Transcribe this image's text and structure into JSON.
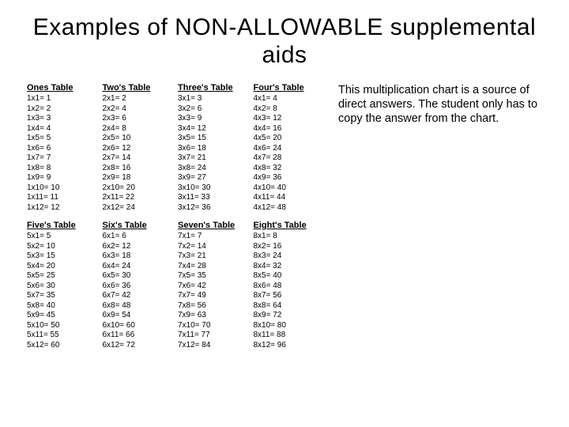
{
  "title": "Examples of NON-ALLOWABLE supplemental aids",
  "caption": "This multiplication chart is a source of direct answers.  The student only has to copy the answer from the chart.",
  "tables": {
    "t1": {
      "header": "Ones Table",
      "prefix": "1",
      "rows": [
        {
          "m": "x1=",
          "p": "1"
        },
        {
          "m": "x2=",
          "p": "2"
        },
        {
          "m": "x3=",
          "p": "3"
        },
        {
          "m": "x4=",
          "p": "4"
        },
        {
          "m": "x5=",
          "p": "5"
        },
        {
          "m": "x6=",
          "p": "6"
        },
        {
          "m": "x7=",
          "p": "7"
        },
        {
          "m": "x8=",
          "p": "8"
        },
        {
          "m": "x9=",
          "p": "9"
        },
        {
          "m": "x10=",
          "p": "10"
        },
        {
          "m": "x11=",
          "p": "11"
        },
        {
          "m": "x12=",
          "p": "12"
        }
      ]
    },
    "t2": {
      "header": "Two's Table",
      "prefix": "2",
      "rows": [
        {
          "m": "x1=",
          "p": "2"
        },
        {
          "m": "x2=",
          "p": "4"
        },
        {
          "m": "x3=",
          "p": "6"
        },
        {
          "m": "x4=",
          "p": "8"
        },
        {
          "m": "x5=",
          "p": "10"
        },
        {
          "m": "x6=",
          "p": "12"
        },
        {
          "m": "x7=",
          "p": "14"
        },
        {
          "m": "x8=",
          "p": "16"
        },
        {
          "m": "x9=",
          "p": "18"
        },
        {
          "m": "x10=",
          "p": "20"
        },
        {
          "m": "x11=",
          "p": "22"
        },
        {
          "m": "x12=",
          "p": "24"
        }
      ]
    },
    "t3": {
      "header": "Three's Table",
      "prefix": "3",
      "rows": [
        {
          "m": "x1=",
          "p": "3"
        },
        {
          "m": "x2=",
          "p": "6"
        },
        {
          "m": "x3=",
          "p": "9"
        },
        {
          "m": "x4=",
          "p": "12"
        },
        {
          "m": "x5=",
          "p": "15"
        },
        {
          "m": "x6=",
          "p": "18"
        },
        {
          "m": "x7=",
          "p": "21"
        },
        {
          "m": "x8=",
          "p": "24"
        },
        {
          "m": "x9=",
          "p": "27"
        },
        {
          "m": "x10=",
          "p": "30"
        },
        {
          "m": "x11=",
          "p": "33"
        },
        {
          "m": "x12=",
          "p": "36"
        }
      ]
    },
    "t4": {
      "header": "Four's Table",
      "prefix": "4",
      "rows": [
        {
          "m": "x1=",
          "p": "4"
        },
        {
          "m": "x2=",
          "p": "8"
        },
        {
          "m": "x3=",
          "p": "12"
        },
        {
          "m": "x4=",
          "p": "16"
        },
        {
          "m": "x5=",
          "p": "20"
        },
        {
          "m": "x6=",
          "p": "24"
        },
        {
          "m": "x7=",
          "p": "28"
        },
        {
          "m": "x8=",
          "p": "32"
        },
        {
          "m": "x9=",
          "p": "36"
        },
        {
          "m": "x10=",
          "p": "40"
        },
        {
          "m": "x11=",
          "p": "44"
        },
        {
          "m": "x12=",
          "p": "48"
        }
      ]
    },
    "t5": {
      "header": "Five's Table",
      "prefix": "5",
      "rows": [
        {
          "m": "x1=",
          "p": "5"
        },
        {
          "m": "x2=",
          "p": "10"
        },
        {
          "m": "x3=",
          "p": "15"
        },
        {
          "m": "x4=",
          "p": "20"
        },
        {
          "m": "x5=",
          "p": "25"
        },
        {
          "m": "x6=",
          "p": "30"
        },
        {
          "m": "x7=",
          "p": "35"
        },
        {
          "m": "x8=",
          "p": "40"
        },
        {
          "m": "x9=",
          "p": "45"
        },
        {
          "m": "x10=",
          "p": "50"
        },
        {
          "m": "x11=",
          "p": "55"
        },
        {
          "m": "x12=",
          "p": "60"
        }
      ]
    },
    "t6": {
      "header": "Six's Table",
      "prefix": "6",
      "rows": [
        {
          "m": "x1=",
          "p": "6"
        },
        {
          "m": "x2=",
          "p": "12"
        },
        {
          "m": "x3=",
          "p": "18"
        },
        {
          "m": "x4=",
          "p": "24"
        },
        {
          "m": "x5=",
          "p": "30"
        },
        {
          "m": "x6=",
          "p": "36"
        },
        {
          "m": "x7=",
          "p": "42"
        },
        {
          "m": "x8=",
          "p": "48"
        },
        {
          "m": "x9=",
          "p": "54"
        },
        {
          "m": "x10=",
          "p": "60"
        },
        {
          "m": "x11=",
          "p": "66"
        },
        {
          "m": "x12=",
          "p": "72"
        }
      ]
    },
    "t7": {
      "header": "Seven's Table",
      "prefix": "7",
      "rows": [
        {
          "m": "x1=",
          "p": "7"
        },
        {
          "m": "x2=",
          "p": "14"
        },
        {
          "m": "x3=",
          "p": "21"
        },
        {
          "m": "x4=",
          "p": "28"
        },
        {
          "m": "x5=",
          "p": "35"
        },
        {
          "m": "x6=",
          "p": "42"
        },
        {
          "m": "x7=",
          "p": "49"
        },
        {
          "m": "x8=",
          "p": "56"
        },
        {
          "m": "x9=",
          "p": "63"
        },
        {
          "m": "x10=",
          "p": "70"
        },
        {
          "m": "x11=",
          "p": "77"
        },
        {
          "m": "x12=",
          "p": "84"
        }
      ]
    },
    "t8": {
      "header": "Eight's Table",
      "prefix": "8",
      "rows": [
        {
          "m": "x1=",
          "p": "8"
        },
        {
          "m": "x2=",
          "p": "16"
        },
        {
          "m": "x3=",
          "p": "24"
        },
        {
          "m": "x4=",
          "p": "32"
        },
        {
          "m": "x5=",
          "p": "40"
        },
        {
          "m": "x6=",
          "p": "48"
        },
        {
          "m": "x7=",
          "p": "56"
        },
        {
          "m": "x8=",
          "p": "64"
        },
        {
          "m": "x9=",
          "p": "72"
        },
        {
          "m": "x10=",
          "p": "80"
        },
        {
          "m": "x11=",
          "p": "88"
        },
        {
          "m": "x12=",
          "p": "96"
        }
      ]
    }
  },
  "order": [
    "t1",
    "t2",
    "t3",
    "t4",
    "t5",
    "t6",
    "t7",
    "t8"
  ]
}
